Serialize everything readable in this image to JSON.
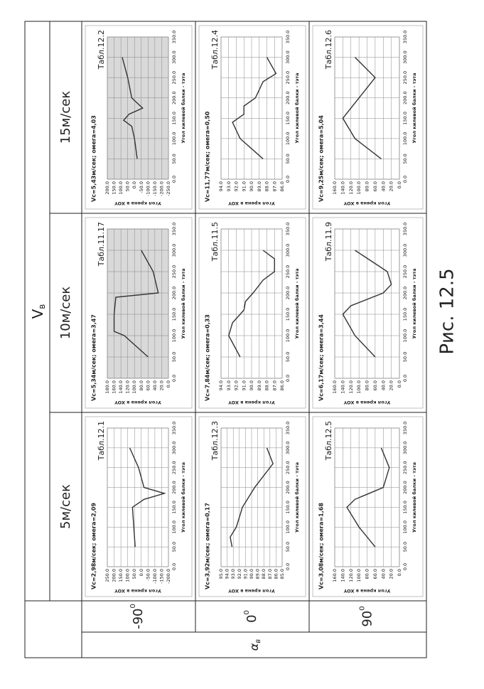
{
  "table": {
    "header": {
      "symbol": "V",
      "subscript": "в"
    },
    "speeds": [
      "5м/сек",
      "10м/сек",
      "15м/сек"
    ],
    "angle_header": {
      "symbol": "α",
      "subscript": "в"
    },
    "angles": [
      {
        "value": "-90",
        "sup": "0"
      },
      {
        "value": "0",
        "sup": "0"
      },
      {
        "value": "90",
        "sup": "0"
      }
    ]
  },
  "caption": "Рис. 12.5",
  "chart_data": [
    {
      "type": "line",
      "title": "Vc=2,98м/сек; омега=2,09",
      "label": "Табл.12.1",
      "xlabel": "Угол килевой балки - тэта",
      "ylabel": "Угол крена в XOY",
      "background": "#ffffff",
      "grid": true,
      "color": "#333333",
      "x": [
        50,
        100,
        150,
        170,
        185,
        200,
        250,
        300
      ],
      "values": [
        45,
        55,
        65,
        -20,
        -170,
        -20,
        20,
        85
      ],
      "xlim": [
        0,
        350
      ],
      "xticks": [
        {
          "value": 0,
          "label": "0.0"
        },
        {
          "value": 50,
          "label": "50.0"
        },
        {
          "value": 100,
          "label": "100.0"
        },
        {
          "value": 150,
          "label": "150.0"
        },
        {
          "value": 200,
          "label": "200.0"
        },
        {
          "value": 250,
          "label": "250.0"
        },
        {
          "value": 300,
          "label": "300.0"
        },
        {
          "value": 350,
          "label": "350.0"
        }
      ],
      "ylim": [
        -200,
        250
      ],
      "yticks": [
        {
          "value": -200,
          "label": "-200.0"
        },
        {
          "value": -150,
          "label": "-150.0"
        },
        {
          "value": -100,
          "label": "-100.0"
        },
        {
          "value": -50,
          "label": "-50.0"
        },
        {
          "value": 0,
          "label": "0.0"
        },
        {
          "value": 50,
          "label": "50.0"
        },
        {
          "value": 100,
          "label": "100.0"
        },
        {
          "value": 150,
          "label": "150.0"
        },
        {
          "value": 200,
          "label": "200.0"
        },
        {
          "value": 250,
          "label": "250.0"
        }
      ]
    },
    {
      "type": "line",
      "title": "Vc=5,34м/сек; омега=3,47",
      "label": "Табл.11.17",
      "xlabel": "Угол килевой балки - тэта",
      "ylabel": "Угол крена в XOY",
      "background": "#d9d9d9",
      "grid": true,
      "color": "#333333",
      "x": [
        50,
        100,
        110,
        150,
        190,
        200,
        250,
        300
      ],
      "values": [
        60,
        130,
        160,
        160,
        155,
        30,
        45,
        80
      ],
      "xlim": [
        0,
        350
      ],
      "xticks": [
        {
          "value": 0,
          "label": "0.0"
        },
        {
          "value": 50,
          "label": "50.0"
        },
        {
          "value": 100,
          "label": "100.0"
        },
        {
          "value": 150,
          "label": "150.0"
        },
        {
          "value": 200,
          "label": "200.0"
        },
        {
          "value": 250,
          "label": "250.0"
        },
        {
          "value": 300,
          "label": "300.0"
        },
        {
          "value": 350,
          "label": "350.0"
        }
      ],
      "ylim": [
        0,
        180
      ],
      "yticks": [
        {
          "value": 0,
          "label": "0.0"
        },
        {
          "value": 20,
          "label": "20.0"
        },
        {
          "value": 40,
          "label": "40.0"
        },
        {
          "value": 60,
          "label": "60.0"
        },
        {
          "value": 80,
          "label": "80.0"
        },
        {
          "value": 100,
          "label": "100.0"
        },
        {
          "value": 120,
          "label": "120.0"
        },
        {
          "value": 140,
          "label": "140.0"
        },
        {
          "value": 160,
          "label": "160.0"
        },
        {
          "value": 180,
          "label": "180.0"
        }
      ]
    },
    {
      "type": "line",
      "title": "Vc=5,43м/сек; омега=4,03",
      "label": "Табл.12.2",
      "xlabel": "Угол килевой балки - тэта",
      "ylabel": "Угол крена в XOY",
      "background": "#d9d9d9",
      "grid": true,
      "color": "#333333",
      "x": [
        50,
        100,
        130,
        145,
        160,
        175,
        200,
        250,
        300
      ],
      "values": [
        -20,
        0,
        20,
        80,
        40,
        -60,
        20,
        50,
        90
      ],
      "xlim": [
        0,
        350
      ],
      "xticks": [
        {
          "value": 0,
          "label": "0.0"
        },
        {
          "value": 50,
          "label": "50.0"
        },
        {
          "value": 100,
          "label": "100.0"
        },
        {
          "value": 150,
          "label": "150.0"
        },
        {
          "value": 200,
          "label": "200.0"
        },
        {
          "value": 250,
          "label": "250.0"
        },
        {
          "value": 300,
          "label": "300.0"
        },
        {
          "value": 350,
          "label": "350.0"
        }
      ],
      "ylim": [
        -250,
        200
      ],
      "yticks": [
        {
          "value": -250,
          "label": "-250.0"
        },
        {
          "value": -200,
          "label": "-200.0"
        },
        {
          "value": -150,
          "label": "-150.0"
        },
        {
          "value": -100,
          "label": "-100.0"
        },
        {
          "value": -50,
          "label": "-50.0"
        },
        {
          "value": 0,
          "label": "0.0"
        },
        {
          "value": 50,
          "label": "50.0"
        },
        {
          "value": 100,
          "label": "100.0"
        },
        {
          "value": 150,
          "label": "150.0"
        },
        {
          "value": 200,
          "label": "200.0"
        }
      ]
    },
    {
      "type": "line",
      "title": "Vc=3,92м/сек; омега=0,17",
      "label": "Табл.12.3",
      "xlabel": "Угол килевой балки - тэта",
      "ylabel": "Угол крена в XOY",
      "background": "#ffffff",
      "grid": true,
      "color": "#333333",
      "x": [
        50,
        75,
        100,
        150,
        175,
        200,
        230,
        260,
        300
      ],
      "values": [
        93.2,
        93.5,
        92.5,
        91.5,
        90.5,
        89.5,
        88,
        86.5,
        87.5
      ],
      "xlim": [
        0,
        350
      ],
      "xticks": [
        {
          "value": 0,
          "label": "0.0"
        },
        {
          "value": 50,
          "label": "50.0"
        },
        {
          "value": 100,
          "label": "100.0"
        },
        {
          "value": 150,
          "label": "150.0"
        },
        {
          "value": 200,
          "label": "200.0"
        },
        {
          "value": 250,
          "label": "250.0"
        },
        {
          "value": 300,
          "label": "300.0"
        },
        {
          "value": 350,
          "label": "350.0"
        }
      ],
      "ylim": [
        85,
        95
      ],
      "yticks": [
        {
          "value": 85,
          "label": "85.0"
        },
        {
          "value": 86,
          "label": "86.0"
        },
        {
          "value": 87,
          "label": "87.0"
        },
        {
          "value": 88,
          "label": "88.0"
        },
        {
          "value": 89,
          "label": "89.0"
        },
        {
          "value": 90,
          "label": "90.0"
        },
        {
          "value": 91,
          "label": "91.0"
        },
        {
          "value": 92,
          "label": "92.0"
        },
        {
          "value": 93,
          "label": "93.0"
        },
        {
          "value": 94,
          "label": "94.0"
        },
        {
          "value": 95,
          "label": "95.0"
        }
      ]
    },
    {
      "type": "line",
      "title": "Vc=7,84м/сек; омега=0,33",
      "label": "Табл.11.5",
      "xlabel": "Угол килевой балки - тэта",
      "ylabel": "Угол крена в XOY",
      "background": "#ffffff",
      "grid": true,
      "color": "#333333",
      "x": [
        50,
        100,
        130,
        160,
        180,
        200,
        230,
        250,
        280,
        300
      ],
      "values": [
        91.5,
        93,
        92.5,
        91,
        90.8,
        89.8,
        88.5,
        87,
        87,
        88.5
      ],
      "xlim": [
        0,
        350
      ],
      "xticks": [
        {
          "value": 0,
          "label": "0.0"
        },
        {
          "value": 50,
          "label": "50.0"
        },
        {
          "value": 100,
          "label": "100.0"
        },
        {
          "value": 150,
          "label": "150.0"
        },
        {
          "value": 200,
          "label": "200.0"
        },
        {
          "value": 250,
          "label": "250.0"
        },
        {
          "value": 300,
          "label": "300.0"
        },
        {
          "value": 350,
          "label": "350.0"
        }
      ],
      "ylim": [
        86,
        94
      ],
      "yticks": [
        {
          "value": 86,
          "label": "86.0"
        },
        {
          "value": 87,
          "label": "87.0"
        },
        {
          "value": 88,
          "label": "88.0"
        },
        {
          "value": 89,
          "label": "89.0"
        },
        {
          "value": 90,
          "label": "90.0"
        },
        {
          "value": 91,
          "label": "91.0"
        },
        {
          "value": 92,
          "label": "92.0"
        },
        {
          "value": 93,
          "label": "93.0"
        },
        {
          "value": 94,
          "label": "94.0"
        }
      ]
    },
    {
      "type": "line",
      "title": "Vc=11,77м/сек; омега=0,50",
      "label": "Табл.12.4",
      "xlabel": "Угол килевой балки - тэта",
      "ylabel": "Угол крена в XOY",
      "background": "#ffffff",
      "grid": true,
      "color": "#333333",
      "x": [
        50,
        100,
        140,
        160,
        180,
        200,
        240,
        260,
        300
      ],
      "values": [
        88.5,
        91.5,
        92.5,
        91,
        91,
        89.5,
        88.5,
        86.8,
        88
      ],
      "xlim": [
        0,
        350
      ],
      "xticks": [
        {
          "value": 0,
          "label": "0.0"
        },
        {
          "value": 50,
          "label": "50.0"
        },
        {
          "value": 100,
          "label": "100.0"
        },
        {
          "value": 150,
          "label": "150.0"
        },
        {
          "value": 200,
          "label": "200.0"
        },
        {
          "value": 250,
          "label": "250.0"
        },
        {
          "value": 300,
          "label": "300.0"
        },
        {
          "value": 350,
          "label": "350.0"
        }
      ],
      "ylim": [
        86,
        94
      ],
      "yticks": [
        {
          "value": 86,
          "label": "86.0"
        },
        {
          "value": 87,
          "label": "87.0"
        },
        {
          "value": 88,
          "label": "88.0"
        },
        {
          "value": 89,
          "label": "89.0"
        },
        {
          "value": 90,
          "label": "90.0"
        },
        {
          "value": 91,
          "label": "91.0"
        },
        {
          "value": 92,
          "label": "92.0"
        },
        {
          "value": 93,
          "label": "93.0"
        },
        {
          "value": 94,
          "label": "94.0"
        }
      ]
    },
    {
      "type": "line",
      "title": "Vc=3,08м/сек; омега=1,68",
      "label": "Табл.12.5",
      "xlabel": "Угол килевой балки - тэта",
      "ylabel": "Угол крена в XOY",
      "background": "#ffffff",
      "grid": true,
      "color": "#333333",
      "x": [
        50,
        100,
        150,
        170,
        200,
        250,
        300
      ],
      "values": [
        60,
        100,
        130,
        110,
        40,
        25,
        45
      ],
      "xlim": [
        0,
        350
      ],
      "xticks": [
        {
          "value": 0,
          "label": "0.0"
        },
        {
          "value": 50,
          "label": "50.0"
        },
        {
          "value": 100,
          "label": "100.0"
        },
        {
          "value": 150,
          "label": "150.0"
        },
        {
          "value": 200,
          "label": "200.0"
        },
        {
          "value": 250,
          "label": "250.0"
        },
        {
          "value": 300,
          "label": "300.0"
        },
        {
          "value": 350,
          "label": "350.0"
        }
      ],
      "ylim": [
        0,
        160
      ],
      "yticks": [
        {
          "value": 0,
          "label": "0.0"
        },
        {
          "value": 20,
          "label": "20.0"
        },
        {
          "value": 40,
          "label": "40.0"
        },
        {
          "value": 60,
          "label": "60.0"
        },
        {
          "value": 80,
          "label": "80.0"
        },
        {
          "value": 100,
          "label": "100.0"
        },
        {
          "value": 120,
          "label": "120.0"
        },
        {
          "value": 140,
          "label": "140.0"
        },
        {
          "value": 160,
          "label": "160.0"
        }
      ]
    },
    {
      "type": "line",
      "title": "Vc=6,17м/сек; омега=3,44",
      "label": "Табл.11.9",
      "xlabel": "Угол килевой балки - тэта",
      "ylabel": "Угол крена в XOY",
      "background": "#ffffff",
      "grid": true,
      "color": "#333333",
      "x": [
        50,
        100,
        150,
        170,
        200,
        220,
        250,
        300
      ],
      "values": [
        60,
        110,
        140,
        120,
        40,
        20,
        30,
        110
      ],
      "xlim": [
        0,
        350
      ],
      "xticks": [
        {
          "value": 0,
          "label": "0.0"
        },
        {
          "value": 50,
          "label": "50.0"
        },
        {
          "value": 100,
          "label": "100.0"
        },
        {
          "value": 150,
          "label": "150.0"
        },
        {
          "value": 200,
          "label": "200.0"
        },
        {
          "value": 250,
          "label": "250.0"
        },
        {
          "value": 300,
          "label": "300.0"
        },
        {
          "value": 350,
          "label": "350.0"
        }
      ],
      "ylim": [
        0,
        160
      ],
      "yticks": [
        {
          "value": 0,
          "label": "0.0"
        },
        {
          "value": 20,
          "label": "20.0"
        },
        {
          "value": 40,
          "label": "40.0"
        },
        {
          "value": 60,
          "label": "60.0"
        },
        {
          "value": 80,
          "label": "80.0"
        },
        {
          "value": 100,
          "label": "100.0"
        },
        {
          "value": 120,
          "label": "120.0"
        },
        {
          "value": 140,
          "label": "140.0"
        },
        {
          "value": 160,
          "label": "160.0"
        }
      ]
    },
    {
      "type": "line",
      "title": "Vc=9,25м/сек; омега=5,04",
      "label": "Табл.12.6",
      "xlabel": "Угол килевой балки - тэта",
      "ylabel": "Угол крена в XOY",
      "background": "#ffffff",
      "grid": true,
      "color": "#333333",
      "x": [
        50,
        100,
        150,
        200,
        250,
        300
      ],
      "values": [
        45,
        110,
        140,
        100,
        60,
        110
      ],
      "xlim": [
        0,
        350
      ],
      "xticks": [
        {
          "value": 0,
          "label": "0.0"
        },
        {
          "value": 50,
          "label": "50.0"
        },
        {
          "value": 100,
          "label": "100.0"
        },
        {
          "value": 150,
          "label": "150.0"
        },
        {
          "value": 200,
          "label": "200.0"
        },
        {
          "value": 250,
          "label": "250.0"
        },
        {
          "value": 300,
          "label": "300.0"
        },
        {
          "value": 350,
          "label": "350.0"
        }
      ],
      "ylim": [
        0,
        160
      ],
      "yticks": [
        {
          "value": 0,
          "label": "0.0"
        },
        {
          "value": 20,
          "label": "20.0"
        },
        {
          "value": 40,
          "label": "40.0"
        },
        {
          "value": 60,
          "label": "60.0"
        },
        {
          "value": 80,
          "label": "80.0"
        },
        {
          "value": 100,
          "label": "100.0"
        },
        {
          "value": 120,
          "label": "120.0"
        },
        {
          "value": 140,
          "label": "140.0"
        },
        {
          "value": 160,
          "label": "160.0"
        }
      ]
    }
  ]
}
